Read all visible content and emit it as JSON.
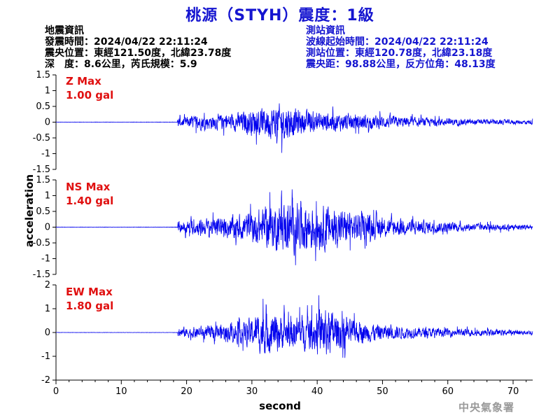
{
  "title": "桃源（STYH）震度：1級",
  "event_info": {
    "heading": "地震資訊",
    "origin_time": "發震時間：2024/04/22 22:11:24",
    "epicenter": "震央位置：東經121.50度，北緯23.78度",
    "depth_magnitude": "深　度：8.6公里，芮氏規模：5.9"
  },
  "station_info": {
    "heading": "測站資訊",
    "wave_start": "波線起始時間：2024/04/22 22:11:24",
    "location": "測站位置：東經120.78度，北緯23.18度",
    "distance": "震央距：98.88公里，反方位角：48.13度"
  },
  "footer": "中央氣象署",
  "colors": {
    "title": "#1515d0",
    "trace": "#0000ee",
    "max_label": "#e01010",
    "footer": "#9a9a9a"
  },
  "chart_data": {
    "type": "line",
    "xlabel": "second",
    "ylabel": "acceleration",
    "xlim": [
      0,
      73
    ],
    "xticks": [
      0,
      10,
      20,
      30,
      40,
      50,
      60,
      70
    ],
    "grid": false,
    "panels": [
      {
        "name": "Z Max",
        "max_value": "1.00 gal",
        "ylim": [
          -1.5,
          1.5
        ],
        "yticks": [
          -1.5,
          -1,
          -0.5,
          0,
          0.5,
          1,
          1.5
        ],
        "ytick_labels": [
          "-1.5",
          "-1",
          "-0.5",
          "0",
          "0.5",
          "1",
          "1.5"
        ],
        "quiet_until": 18.6,
        "envelope": [
          [
            18.6,
            0.25
          ],
          [
            22,
            0.4
          ],
          [
            27,
            0.45
          ],
          [
            30,
            0.7
          ],
          [
            34.7,
            1.0
          ],
          [
            38,
            0.6
          ],
          [
            45,
            0.45
          ],
          [
            50,
            0.35
          ],
          [
            55,
            0.25
          ],
          [
            60,
            0.2
          ],
          [
            66,
            0.14
          ],
          [
            73,
            0.12
          ]
        ]
      },
      {
        "name": "NS Max",
        "max_value": "1.40 gal",
        "ylim": [
          -1.5,
          1.5
        ],
        "yticks": [
          -1.5,
          -1,
          -0.5,
          0,
          0.5,
          1,
          1.5
        ],
        "ytick_labels": [
          "-1.5",
          "-1",
          "-0.5",
          "0",
          "0.5",
          "1",
          "1.5"
        ],
        "quiet_until": 18.6,
        "envelope": [
          [
            18.6,
            0.3
          ],
          [
            22,
            0.45
          ],
          [
            27,
            0.6
          ],
          [
            30,
            0.85
          ],
          [
            33.5,
            1.2
          ],
          [
            38,
            1.4
          ],
          [
            42,
            1.1
          ],
          [
            47,
            0.7
          ],
          [
            52,
            0.5
          ],
          [
            58,
            0.3
          ],
          [
            65,
            0.2
          ],
          [
            73,
            0.15
          ]
        ]
      },
      {
        "name": "EW Max",
        "max_value": "1.80 gal",
        "ylim": [
          -2,
          2
        ],
        "yticks": [
          -2,
          -1,
          0,
          1,
          2
        ],
        "ytick_labels": [
          "-2",
          "-1",
          "0",
          "1",
          "2"
        ],
        "quiet_until": 18.6,
        "envelope": [
          [
            18.6,
            0.35
          ],
          [
            24,
            0.5
          ],
          [
            29,
            0.8
          ],
          [
            32,
            1.6
          ],
          [
            35,
            1.2
          ],
          [
            39,
            1.2
          ],
          [
            41,
            1.8
          ],
          [
            45,
            0.9
          ],
          [
            50,
            0.55
          ],
          [
            56,
            0.35
          ],
          [
            62,
            0.28
          ],
          [
            73,
            0.15
          ]
        ]
      }
    ]
  }
}
